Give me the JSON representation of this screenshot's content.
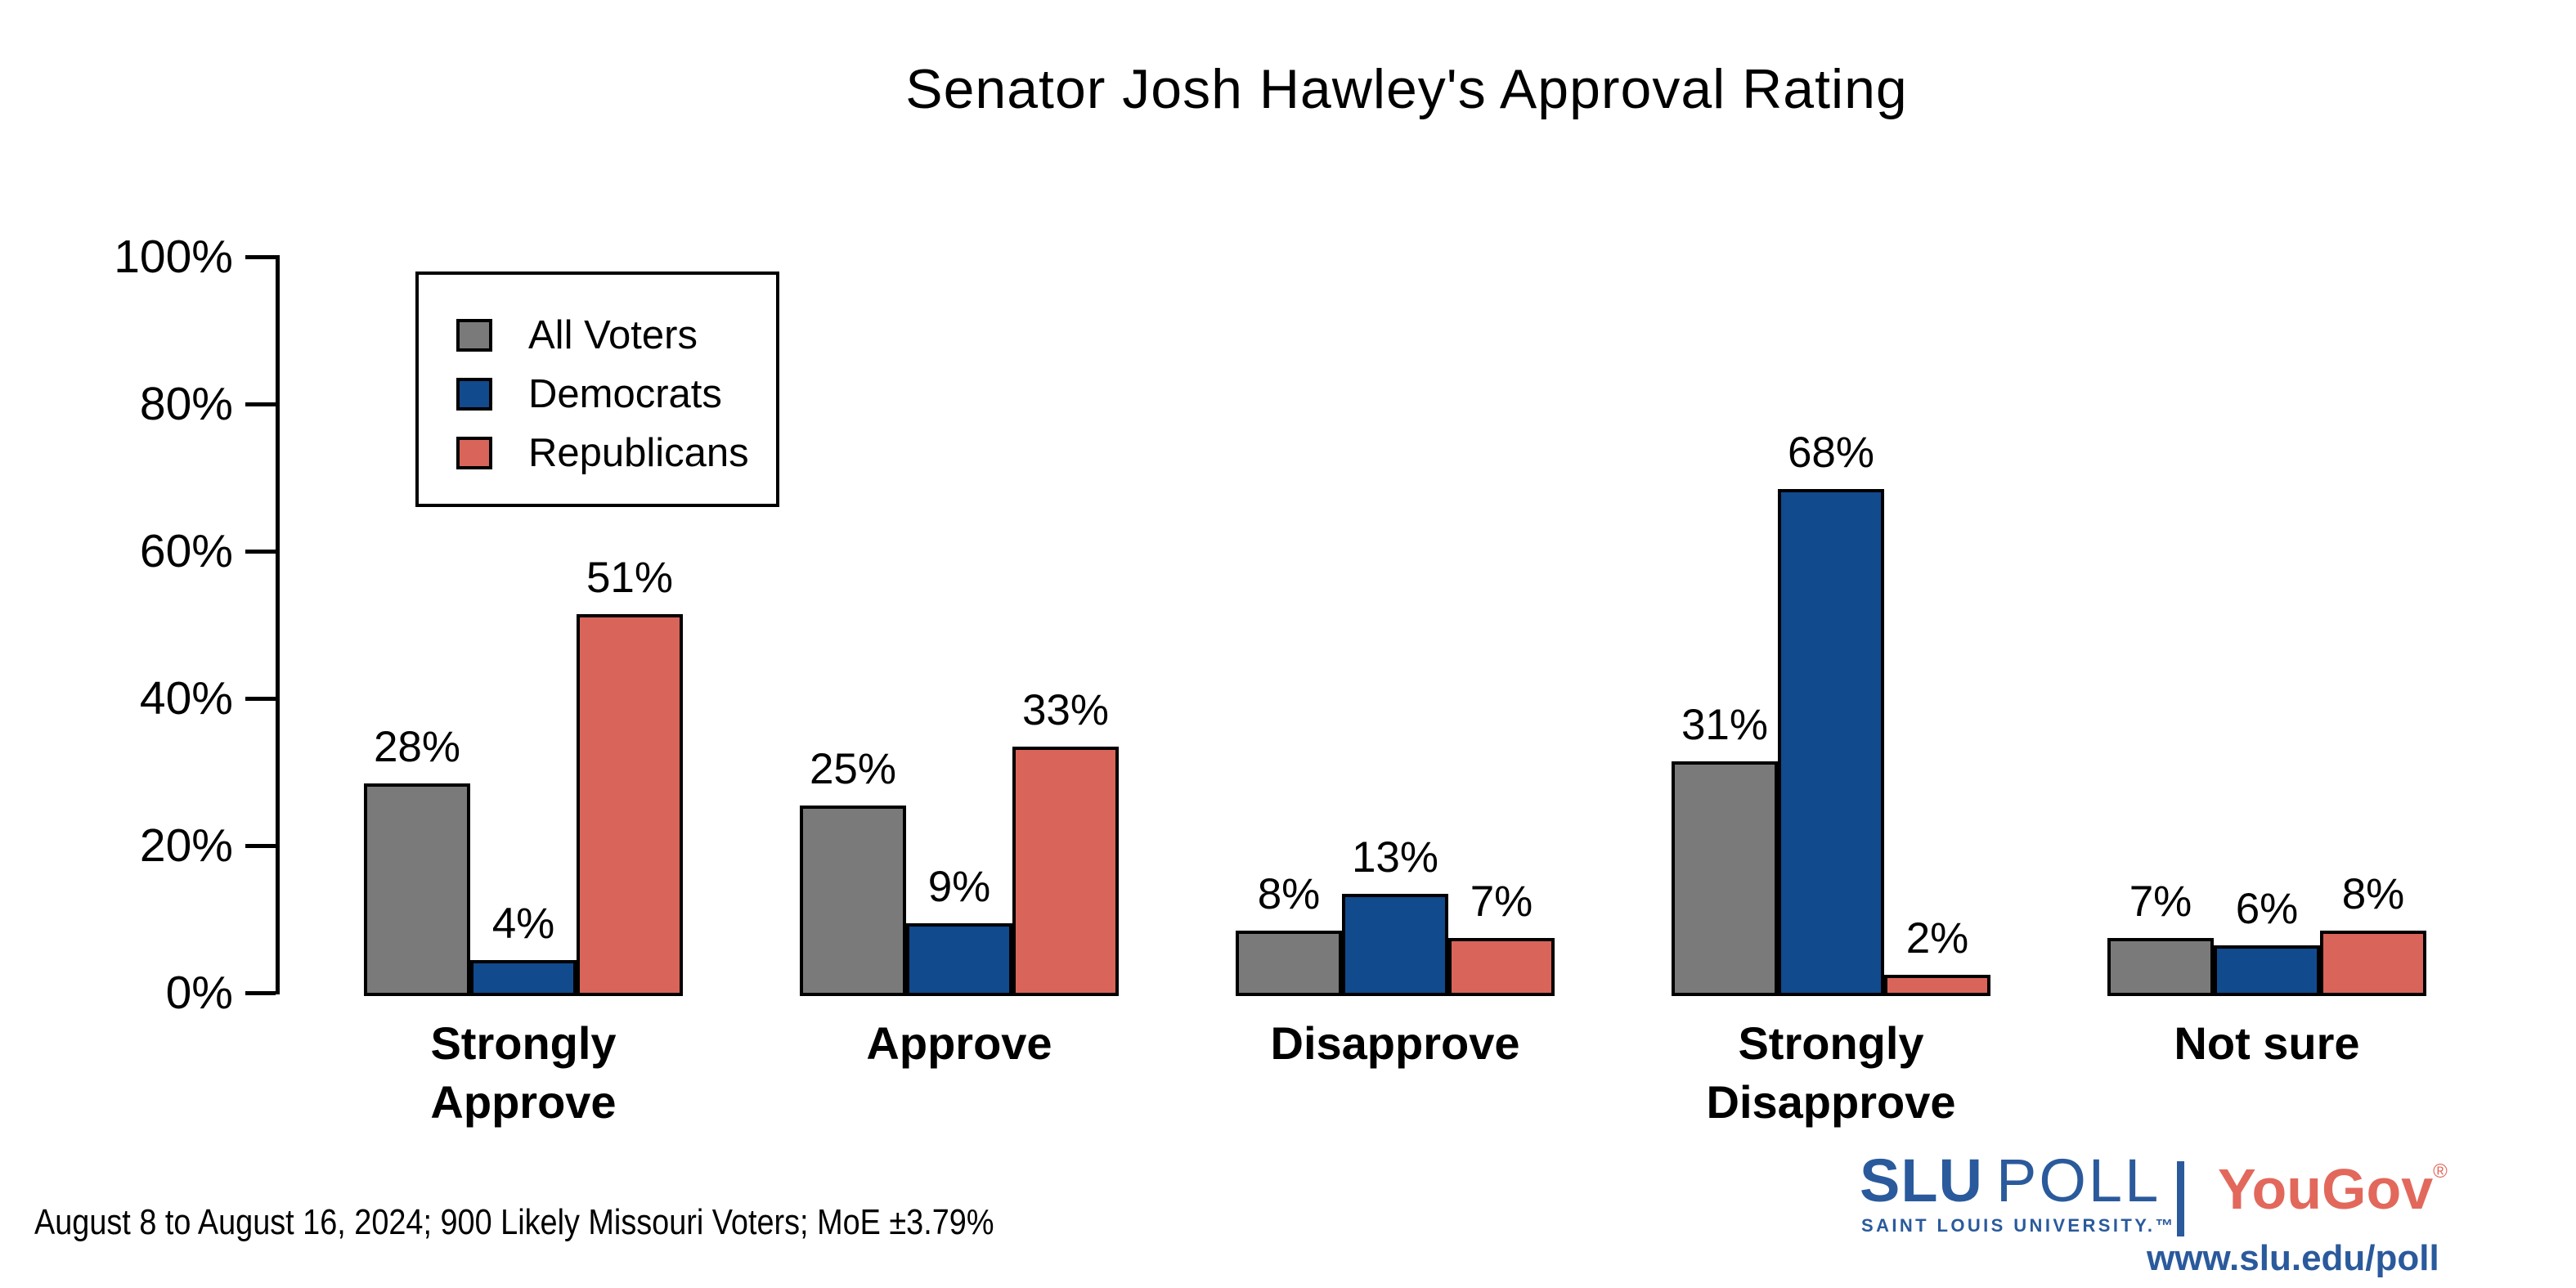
{
  "chart_data": {
    "type": "bar",
    "title": "Senator Josh Hawley's Approval Rating",
    "categories": [
      "Strongly Approve",
      "Approve",
      "Disapprove",
      "Strongly Disapprove",
      "Not sure"
    ],
    "category_lines": [
      [
        "Strongly",
        "Approve"
      ],
      [
        "Approve"
      ],
      [
        "Disapprove"
      ],
      [
        "Strongly",
        "Disapprove"
      ],
      [
        "Not sure"
      ]
    ],
    "series": [
      {
        "name": "All Voters",
        "color": "#7a7a7a",
        "values": [
          28,
          25,
          8,
          31,
          7
        ]
      },
      {
        "name": "Democrats",
        "color": "#114a8d",
        "values": [
          4,
          9,
          13,
          68,
          6
        ]
      },
      {
        "name": "Republicans",
        "color": "#d9645a",
        "values": [
          51,
          33,
          7,
          2,
          8
        ]
      }
    ],
    "xlabel": "",
    "ylabel": "",
    "ylim": [
      0,
      100
    ],
    "yticks": [
      "0%",
      "20%",
      "40%",
      "60%",
      "80%",
      "100%"
    ],
    "ytick_values": [
      0,
      20,
      40,
      60,
      80,
      100
    ],
    "value_suffix": "%",
    "bar_outline_color": "#000000",
    "legend_position": "top-left",
    "grid": false
  },
  "footer": {
    "note": "August 8 to August 16, 2024; 900 Likely Missouri Voters; MoE ±3.79%"
  },
  "branding": {
    "slu": "SLU",
    "poll": "POLL",
    "slu_sub": "SAINT LOUIS UNIVERSITY.™",
    "yougov": "YouGov",
    "registered": "®",
    "url": "www.slu.edu/poll",
    "slu_blue": "#2a5a9c",
    "yougov_red": "#e2685c"
  }
}
